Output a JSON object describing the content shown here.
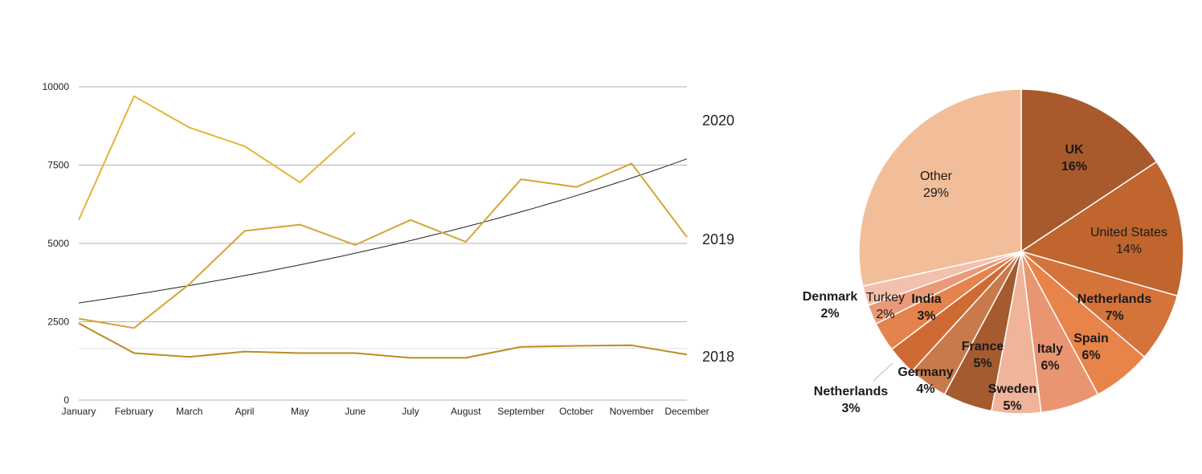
{
  "colors": {
    "series_2020": "#e3b53a",
    "series_2019": "#d3a535",
    "series_2018": "#ba8c22",
    "trend": "#222222",
    "grid": "#999999"
  },
  "chart_data": [
    {
      "type": "line",
      "categories": [
        "January",
        "February",
        "March",
        "April",
        "May",
        "June",
        "July",
        "August",
        "September",
        "October",
        "November",
        "December"
      ],
      "yticks": [
        "0",
        "2500",
        "5000",
        "7500",
        "10000"
      ],
      "ylim": [
        0,
        10000
      ],
      "grid": true,
      "series": [
        {
          "name": "2020",
          "values": [
            5750,
            9700,
            8700,
            8100,
            6950,
            8550,
            null,
            null,
            null,
            null,
            null,
            null
          ]
        },
        {
          "name": "2019",
          "values": [
            2600,
            2300,
            3700,
            5400,
            5600,
            4950,
            5750,
            5050,
            7050,
            6800,
            7550,
            5200
          ]
        },
        {
          "name": "2018",
          "values": [
            2450,
            1500,
            1380,
            1550,
            1500,
            1500,
            1350,
            1350,
            1700,
            1730,
            1750,
            1450
          ]
        }
      ],
      "trendline": {
        "series": "2019",
        "start": 3100,
        "end": 7700
      },
      "reference_line": 1650
    },
    {
      "type": "pie",
      "slices": [
        {
          "name": "UK",
          "pct_label": "16%",
          "value": 16,
          "color": "#a85a2c",
          "bold": true
        },
        {
          "name": "United States",
          "pct_label": "14%",
          "value": 14,
          "color": "#c0652e",
          "bold": false
        },
        {
          "name": "Netherlands",
          "pct_label": "7%",
          "value": 7,
          "color": "#d4733a",
          "bold": true
        },
        {
          "name": "Spain",
          "pct_label": "6%",
          "value": 6,
          "color": "#e8834a",
          "bold": true
        },
        {
          "name": "Italy",
          "pct_label": "6%",
          "value": 6,
          "color": "#ea9572",
          "bold": true
        },
        {
          "name": "Sweden",
          "pct_label": "5%",
          "value": 5,
          "color": "#f0b49a",
          "bold": true
        },
        {
          "name": "France",
          "pct_label": "5%",
          "value": 5,
          "color": "#a55a30",
          "bold": true
        },
        {
          "name": "Germany",
          "pct_label": "4%",
          "value": 4,
          "color": "#c87a4c",
          "bold": true
        },
        {
          "name": "Netherlands",
          "pct_label": "3%",
          "value": 3,
          "color": "#d06a34",
          "bold": true
        },
        {
          "name": "India",
          "pct_label": "3%",
          "value": 3,
          "color": "#e5834c",
          "bold": true
        },
        {
          "name": "Turkey",
          "pct_label": "2%",
          "value": 2,
          "color": "#ea9a78",
          "bold": false
        },
        {
          "name": "Denmark",
          "pct_label": "2%",
          "value": 2,
          "color": "#f2c0ad",
          "bold": true
        },
        {
          "name": "Other",
          "pct_label": "29%",
          "value": 29,
          "color": "#f2be9a",
          "bold": false
        }
      ]
    }
  ]
}
